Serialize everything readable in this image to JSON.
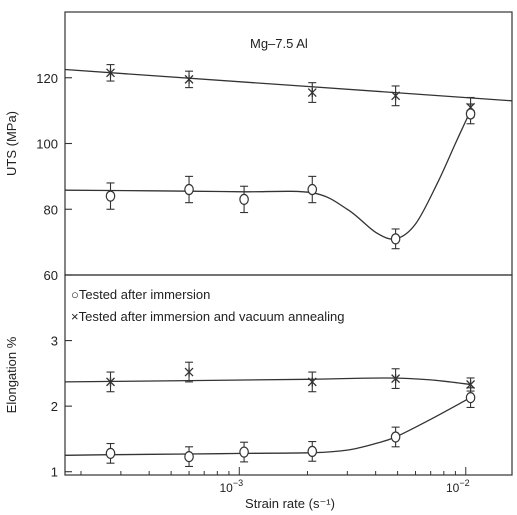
{
  "chart_data": {
    "type": "scatter",
    "x_scale": "log",
    "x_ticks": [
      0.001,
      0.01
    ],
    "x_tick_labels": [
      {
        "base": "10",
        "exp": "−3"
      },
      {
        "base": "10",
        "exp": "−2"
      }
    ],
    "xlabel": "Strain rate (s⁻¹)",
    "xlim": [
      0.00017,
      0.016
    ],
    "legend": {
      "placement": "top-left of lower panel",
      "entries": [
        {
          "marker": "○",
          "label": "Tested after immersion"
        },
        {
          "marker": "×",
          "label": "Tested after immersion and vacuum annealing"
        }
      ]
    },
    "panels": [
      {
        "id": "uts",
        "annotation": "Mg–7.5 Al",
        "ylabel": "UTS (MPa)",
        "ylim": [
          60,
          140
        ],
        "yticks": [
          60,
          80,
          100,
          120
        ],
        "series": [
          {
            "marker": "asterisk",
            "x": [
              0.00027,
              0.0006,
              0.0021,
              0.0049,
              0.0105
            ],
            "y": [
              121.5,
              119.5,
              115.5,
              114.5,
              111
            ],
            "err": [
              2.5,
              2.5,
              3,
              3,
              3
            ],
            "curve_x": [
              0.00017,
              0.016
            ],
            "curve_y": [
              122.5,
              113
            ]
          },
          {
            "marker": "circle",
            "x": [
              0.00027,
              0.0006,
              0.00105,
              0.0021,
              0.0049,
              0.0105
            ],
            "y": [
              84,
              86,
              83,
              86,
              71,
              109
            ],
            "err": [
              4,
              4,
              4,
              4,
              3,
              3
            ],
            "curve_x": [
              0.00017,
              0.00027,
              0.0006,
              0.00105,
              0.0021,
              0.003,
              0.004,
              0.0049,
              0.006,
              0.0075,
              0.009,
              0.0105
            ],
            "curve_y": [
              85.8,
              85.7,
              85.5,
              85.3,
              85,
              80,
              73,
              71,
              75.5,
              88,
              100,
              110
            ]
          }
        ]
      },
      {
        "id": "elongation",
        "ylabel": "Elongation %",
        "ylim": [
          0.95,
          4.0
        ],
        "yticks": [
          1,
          2,
          3
        ],
        "series": [
          {
            "marker": "asterisk",
            "x": [
              0.00027,
              0.0006,
              0.0021,
              0.0049,
              0.0105
            ],
            "y": [
              2.37,
              2.52,
              2.37,
              2.42,
              2.33
            ],
            "err": [
              0.15,
              0.15,
              0.15,
              0.15,
              0.1
            ],
            "curve_x": [
              0.00017,
              0.0006,
              0.002,
              0.0045,
              0.007,
              0.0105
            ],
            "curve_y": [
              2.37,
              2.39,
              2.41,
              2.43,
              2.4,
              2.33
            ]
          },
          {
            "marker": "circle",
            "x": [
              0.00027,
              0.0006,
              0.00105,
              0.0021,
              0.0049,
              0.0105
            ],
            "y": [
              1.28,
              1.23,
              1.3,
              1.31,
              1.53,
              2.13
            ],
            "err": [
              0.15,
              0.15,
              0.15,
              0.15,
              0.15,
              0.15
            ],
            "curve_x": [
              0.00017,
              0.00027,
              0.0006,
              0.00105,
              0.0021,
              0.003,
              0.004,
              0.0049,
              0.007,
              0.0105
            ],
            "curve_y": [
              1.25,
              1.26,
              1.27,
              1.28,
              1.29,
              1.33,
              1.43,
              1.53,
              1.8,
              2.13
            ]
          }
        ]
      }
    ]
  }
}
